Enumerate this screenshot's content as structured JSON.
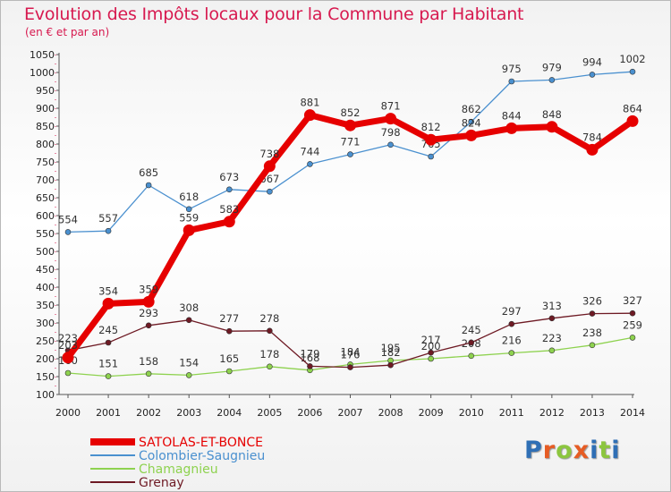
{
  "header": {
    "title": "Evolution des Impôts locaux pour la Commune par Habitant",
    "subtitle": "(en € et par an)"
  },
  "logo": {
    "text": "Proxiti",
    "letters": [
      {
        "ch": "P",
        "color": "#2f6fb5"
      },
      {
        "ch": "r",
        "color": "#e65c24"
      },
      {
        "ch": "o",
        "color": "#8cc63f"
      },
      {
        "ch": "x",
        "color": "#e65c24"
      },
      {
        "ch": "i",
        "color": "#2f6fb5"
      },
      {
        "ch": "t",
        "color": "#8cc63f"
      },
      {
        "ch": "i",
        "color": "#2f6fb5"
      }
    ]
  },
  "chart_data": {
    "type": "line",
    "categories": [
      "2000",
      "2001",
      "2002",
      "2003",
      "2004",
      "2005",
      "2006",
      "2007",
      "2008",
      "2009",
      "2010",
      "2011",
      "2012",
      "2013",
      "2014"
    ],
    "ylim": [
      100,
      1050
    ],
    "yticks": [
      100,
      150,
      200,
      250,
      300,
      350,
      400,
      450,
      500,
      550,
      600,
      650,
      700,
      750,
      800,
      850,
      900,
      950,
      1000,
      1050
    ],
    "grid": false,
    "legend_placement": "bottom-left",
    "series": [
      {
        "name": "SATOLAS-ET-BONCE",
        "color": "#e60000",
        "values": [
          203,
          354,
          359,
          559,
          583,
          738,
          881,
          852,
          871,
          812,
          824,
          844,
          848,
          784,
          864
        ]
      },
      {
        "name": "Colombier-Saugnieu",
        "color": "#4a90cf",
        "values": [
          554,
          557,
          685,
          618,
          673,
          667,
          744,
          771,
          798,
          765,
          862,
          975,
          979,
          994,
          1002
        ]
      },
      {
        "name": "Chamagnieu",
        "color": "#8ed24f",
        "values": [
          160,
          151,
          158,
          154,
          165,
          178,
          168,
          184,
          195,
          200,
          208,
          216,
          223,
          238,
          259
        ]
      },
      {
        "name": "Grenay",
        "color": "#6e1a24",
        "values": [
          223,
          245,
          293,
          308,
          277,
          278,
          179,
          176,
          182,
          217,
          245,
          297,
          313,
          326,
          327
        ]
      }
    ]
  }
}
